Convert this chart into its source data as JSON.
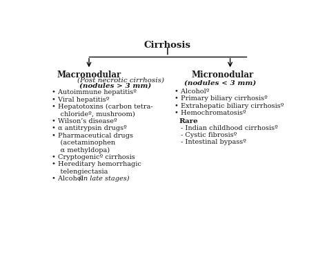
{
  "title": "Cirrhosis",
  "left_header": "Macronodular",
  "left_sub1": "(Post necrotic cirrhosis)",
  "left_sub2": "(nodules > 3 mm)",
  "right_header": "Micronodular",
  "right_sub": "(nodules < 3 mm)",
  "left_items": [
    [
      "•",
      " Autoimmune hepatitisº",
      "normal"
    ],
    [
      "•",
      " Viral hepatitisº",
      "normal"
    ],
    [
      "•",
      " Hepatotoxins (carbon tetra-",
      "normal"
    ],
    [
      "",
      "   chlorideº, mushroom)",
      "normal"
    ],
    [
      "•",
      " Wilson’s diseaseº",
      "normal"
    ],
    [
      "•",
      " α antitrypsin drugsº",
      "normal"
    ],
    [
      "•",
      " Pharmaceutical drugs",
      "normal"
    ],
    [
      "",
      "   (acetaminophen",
      "normal"
    ],
    [
      "",
      "   α methyldopa)",
      "normal"
    ],
    [
      "•",
      " Cryptogenicº cirrhosis",
      "normal"
    ],
    [
      "•",
      " Hereditary hemorrhagic",
      "normal"
    ],
    [
      "",
      "   telengiectasia",
      "normal"
    ],
    [
      "•",
      " Alcohol (",
      "mixed_italic_end"
    ]
  ],
  "right_items": [
    [
      "•",
      " Alcoholº",
      "normal"
    ],
    [
      "•",
      " Primary biliary cirrhosisº",
      "normal"
    ],
    [
      "•",
      " Extrahepatic biliary cirrhosisº",
      "normal"
    ],
    [
      "•",
      " Hemochromatosisº",
      "normal"
    ]
  ],
  "rare_items": [
    [
      "-",
      " Indian childhood cirrhosisº",
      "normal"
    ],
    [
      "-",
      " Cystic fibrosisº",
      "normal"
    ],
    [
      "-",
      " Intestinal bypassº",
      "normal"
    ]
  ],
  "bg_color": "#ffffff",
  "text_color": "#1a1a1a",
  "arrow_color": "#2a2a2a"
}
